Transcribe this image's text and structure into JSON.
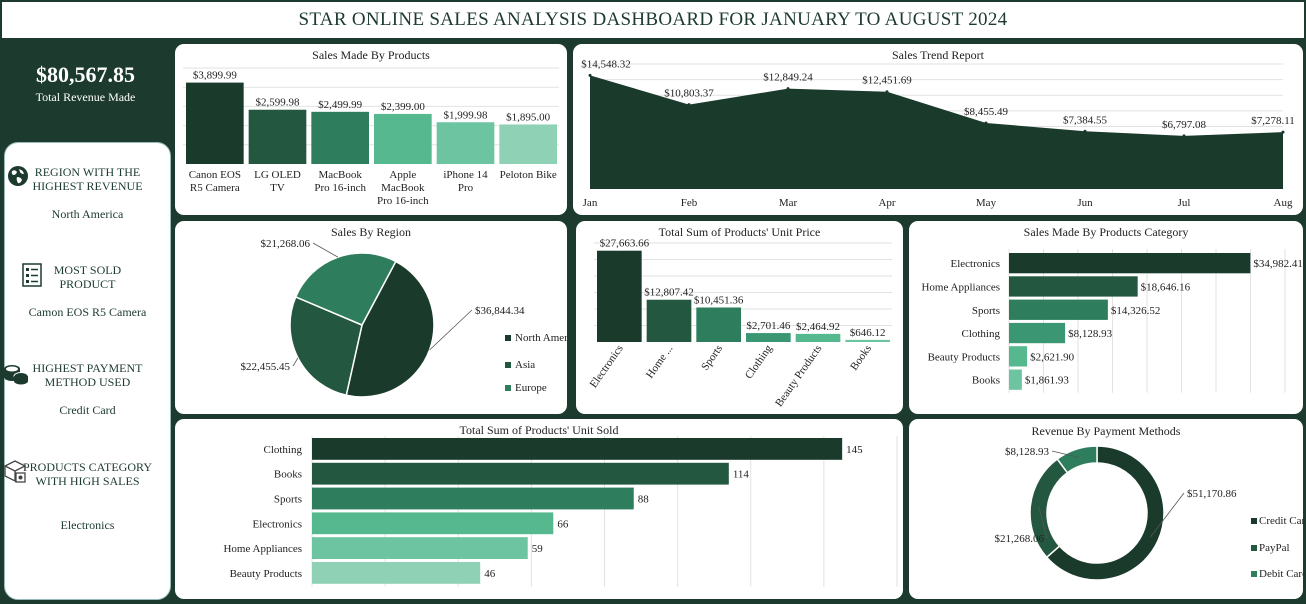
{
  "header": {
    "title": "STAR ONLINE SALES ANALYSIS DASHBOARD FOR JANUARY TO AUGUST 2024"
  },
  "kpi": {
    "value": "$80,567.85",
    "label": "Total Revenue Made"
  },
  "sidebar": [
    {
      "heading1": "REGION WITH THE",
      "heading2": "HIGHEST REVENUE",
      "value": "North America",
      "icon": "globe-icon"
    },
    {
      "heading1": "MOST SOLD",
      "heading2": "PRODUCT",
      "value": "Camon EOS R5 Camera",
      "icon": "checklist-icon"
    },
    {
      "heading1": "HIGHEST PAYMENT",
      "heading2": "METHOD  USED",
      "value": "Credit Card",
      "icon": "coins-icon"
    },
    {
      "heading1": "PRODUCTS CATEGORY",
      "heading2": "WITH HIGH SALES",
      "value": "Electronics",
      "icon": "boxes-icon"
    }
  ],
  "colors": {
    "dark": "#1a3a2c",
    "mid": "#245740",
    "green": "#2e7d5c",
    "teal": "#3a9673",
    "light": "#55b88e",
    "lighter": "#6cc4a0",
    "pale": "#8fd1b5"
  },
  "chart_data": [
    {
      "id": "products",
      "type": "bar",
      "title": "Sales Made By Products",
      "categories": [
        [
          "Canon EOS",
          "R5 Camera"
        ],
        [
          "LG OLED",
          "TV"
        ],
        [
          "MacBook",
          "Pro 16-inch"
        ],
        [
          "Apple",
          "MacBook",
          "Pro 16-inch"
        ],
        [
          "iPhone 14",
          "Pro"
        ],
        [
          "Peloton Bike"
        ]
      ],
      "values": [
        3899.99,
        2599.98,
        2499.99,
        2399.0,
        1999.98,
        1895.0
      ],
      "labels": [
        "$3,899.99",
        "$2,599.98",
        "$2,499.99",
        "$2,399.00",
        "$1,999.98",
        "$1,895.00"
      ],
      "ylim": [
        0,
        4600
      ]
    },
    {
      "id": "trend",
      "type": "area",
      "title": "Sales Trend Report",
      "categories": [
        "Jan",
        "Feb",
        "Mar",
        "Apr",
        "May",
        "Jun",
        "Jul",
        "Aug"
      ],
      "values": [
        14548.32,
        10803.37,
        12849.24,
        12451.69,
        8455.49,
        7384.55,
        6797.08,
        7278.11
      ],
      "labels": [
        "$14,548.32",
        "$10,803.37",
        "$12,849.24",
        "$12,451.69",
        "$8,455.49",
        "$7,384.55",
        "$6,797.08",
        "$7,278.11"
      ],
      "ylim": [
        0,
        16000
      ]
    },
    {
      "id": "region",
      "type": "pie",
      "title": "Sales By Region",
      "categories": [
        "North America",
        "Asia",
        "Europe"
      ],
      "values": [
        36844.34,
        22455.45,
        21268.06
      ],
      "labels": [
        "$36,844.34",
        "$22,455.45",
        "$21,268.06"
      ],
      "legend_position": "right"
    },
    {
      "id": "unitprice",
      "type": "bar",
      "title": "Total Sum of Products' Unit Price",
      "categories": [
        "Electronics",
        "Home ...",
        "Sports",
        "Clothing",
        "Beauty Products",
        "Books"
      ],
      "values": [
        27663.66,
        12807.42,
        10451.36,
        2701.46,
        2464.92,
        646.12
      ],
      "labels": [
        "$27,663.66",
        "$12,807.42",
        "$10,451.36",
        "$2,701.46",
        "$2,464.92",
        "$646.12"
      ],
      "ylim": [
        0,
        30000
      ]
    },
    {
      "id": "category",
      "type": "bar",
      "orientation": "horizontal",
      "title": "Sales Made By Products Category",
      "categories": [
        "Electronics",
        "Home Appliances",
        "Sports",
        "Clothing",
        "Beauty Products",
        "Books"
      ],
      "values": [
        34982.41,
        18646.16,
        14326.52,
        8128.93,
        2621.9,
        1861.93
      ],
      "labels": [
        "$34,982.41",
        "$18,646.16",
        "$14,326.52",
        "$8,128.93",
        "$2,621.90",
        "$1,861.93"
      ],
      "xlim": [
        0,
        40000
      ]
    },
    {
      "id": "unitsold",
      "type": "bar",
      "orientation": "horizontal",
      "title": "Total Sum of Products' Unit Sold",
      "categories": [
        "Clothing",
        "Books",
        "Sports",
        "Electronics",
        "Home Appliances",
        "Beauty Products"
      ],
      "values": [
        145,
        114,
        88,
        66,
        59,
        46
      ],
      "labels": [
        "145",
        "114",
        "88",
        "66",
        "59",
        "46"
      ],
      "xlim": [
        0,
        160
      ]
    },
    {
      "id": "payment",
      "type": "pie",
      "style": "donut",
      "title": "Revenue By Payment Methods",
      "categories": [
        "Credit Card",
        "PayPal",
        "Debit Card"
      ],
      "values": [
        51170.86,
        21268.06,
        8128.93
      ],
      "labels": [
        "$51,170.86",
        "$21,268.06",
        "$8,128.93"
      ],
      "legend_position": "right"
    }
  ]
}
